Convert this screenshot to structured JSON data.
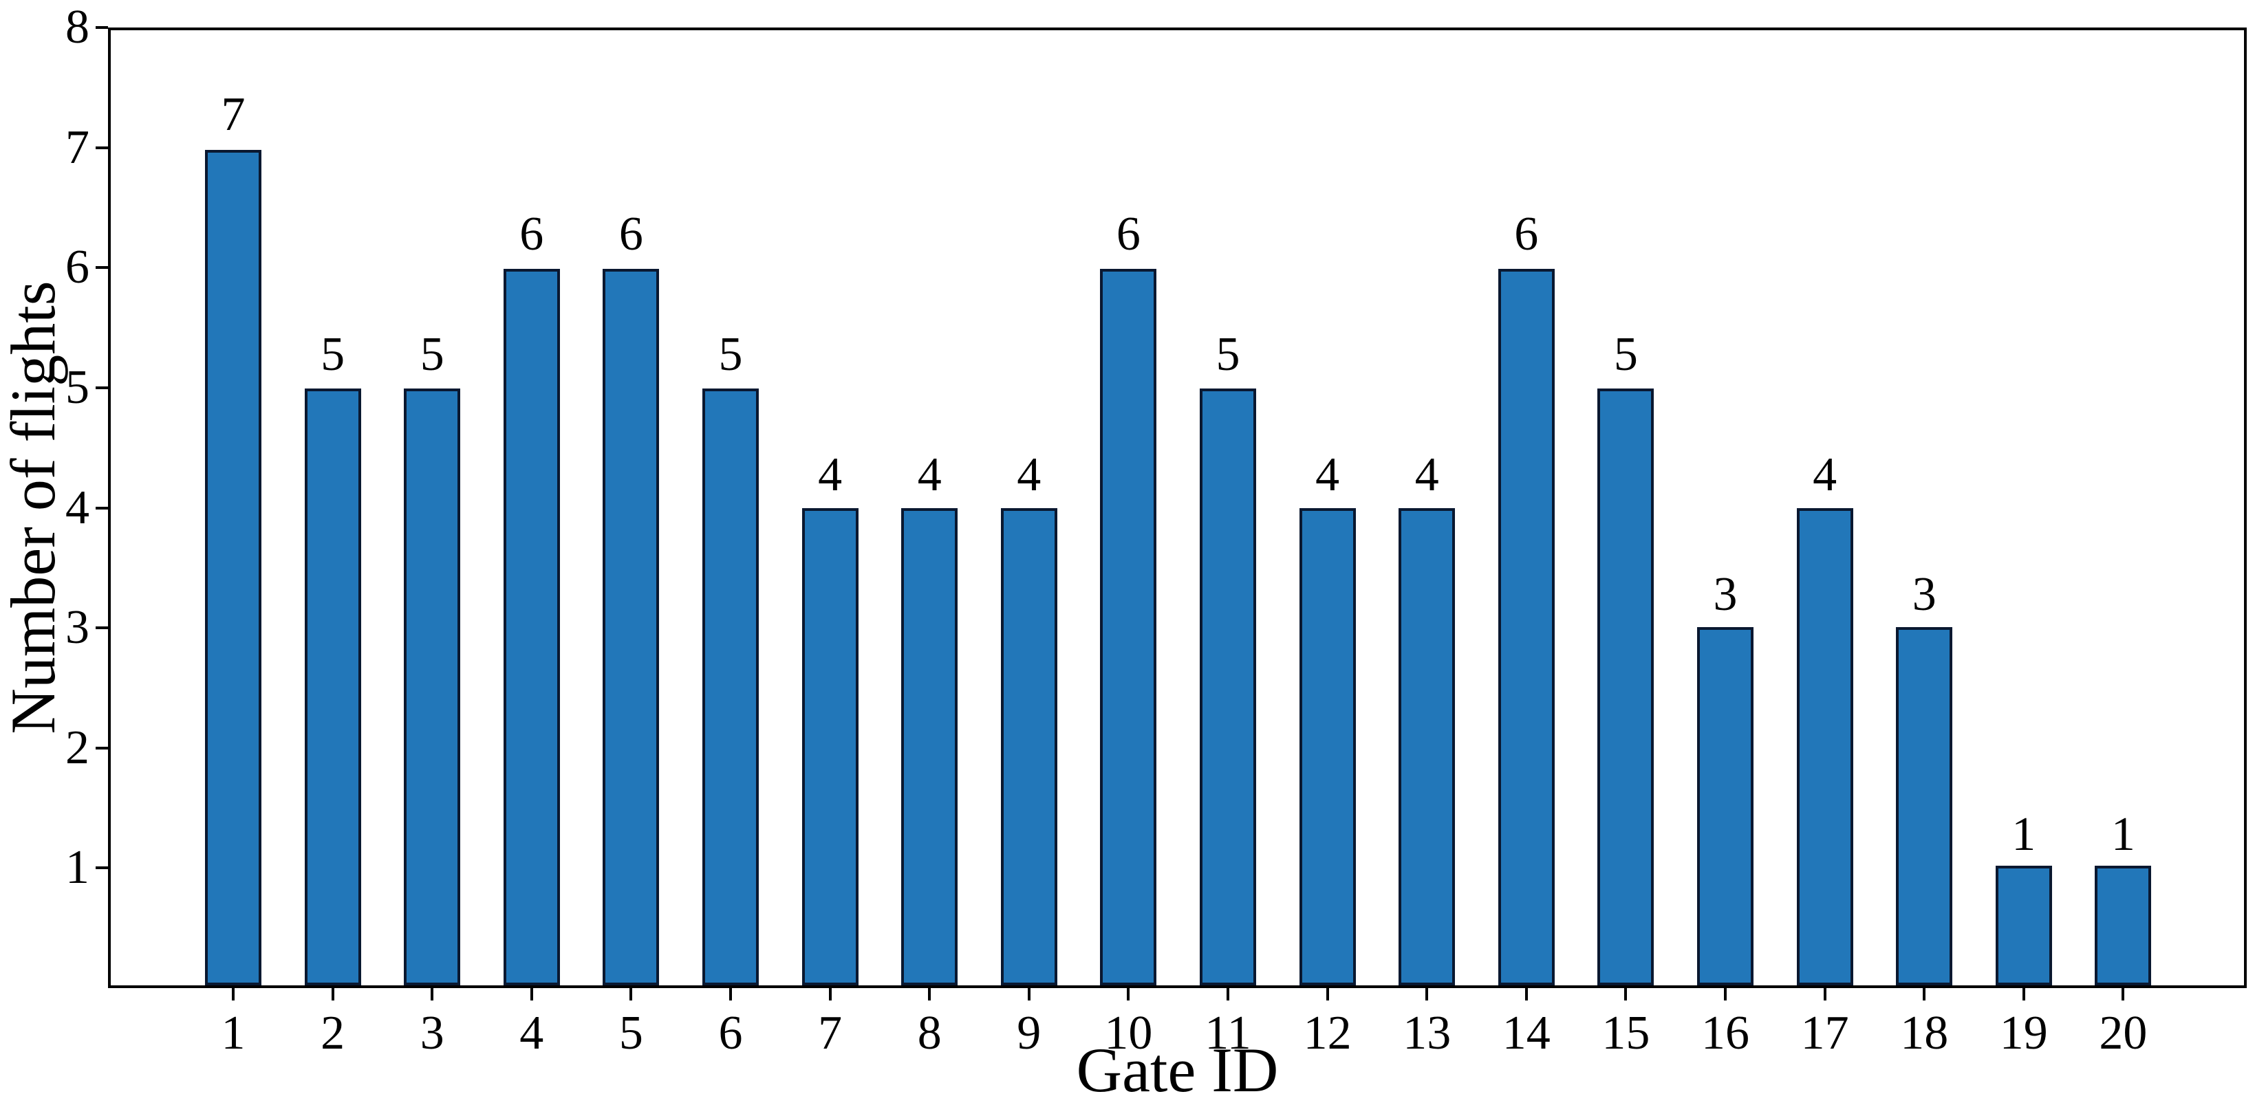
{
  "chart_data": {
    "type": "bar",
    "title": "",
    "xlabel": "Gate ID",
    "ylabel": "Number of flights",
    "categories": [
      "1",
      "2",
      "3",
      "4",
      "5",
      "6",
      "7",
      "8",
      "9",
      "10",
      "11",
      "12",
      "13",
      "14",
      "15",
      "16",
      "17",
      "18",
      "19",
      "20"
    ],
    "values": [
      7,
      5,
      5,
      6,
      6,
      5,
      4,
      4,
      4,
      6,
      5,
      4,
      4,
      6,
      5,
      3,
      4,
      3,
      1,
      1
    ],
    "bar_value_labels": [
      "7",
      "5",
      "5",
      "6",
      "6",
      "5",
      "4",
      "4",
      "4",
      "6",
      "5",
      "4",
      "4",
      "6",
      "5",
      "3",
      "4",
      "3",
      "1",
      "1"
    ],
    "ylim": [
      0,
      8
    ],
    "yticks": [
      1,
      2,
      3,
      4,
      5,
      6,
      7,
      8
    ],
    "grid": false,
    "legend": null,
    "bar_color": "#2277B9",
    "bar_edge_color": "#0A1830",
    "axis_color": "#000000",
    "background_color": "#FFFFFF"
  }
}
